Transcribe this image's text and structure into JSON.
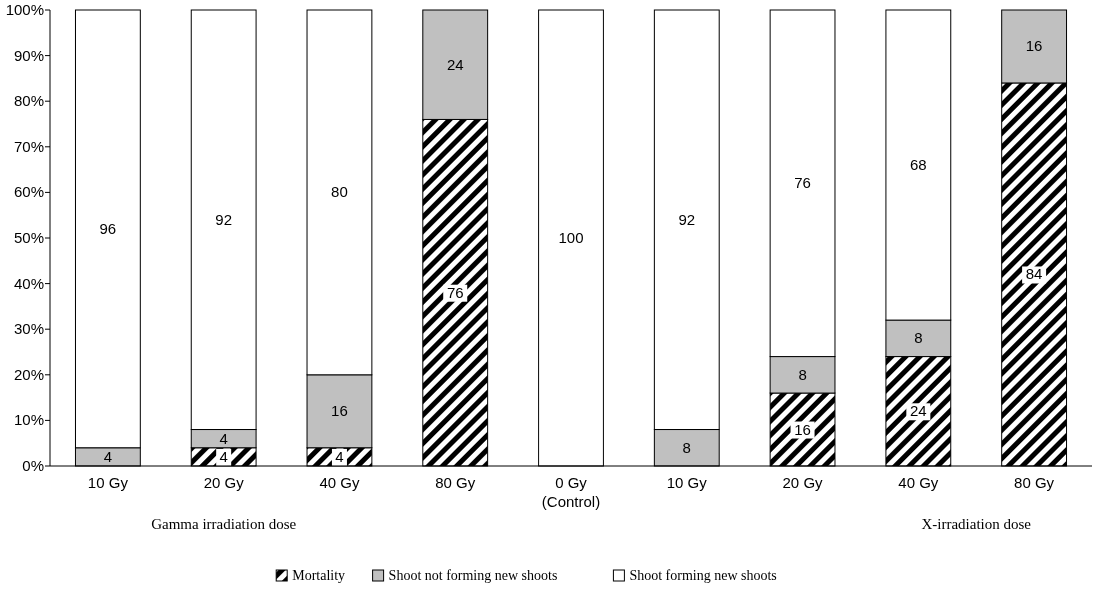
{
  "chart_data": {
    "type": "bar",
    "stacked": true,
    "categories": [
      "10 Gy",
      "20 Gy",
      "40 Gy",
      "80 Gy",
      "0 Gy\n(Control)",
      "10 Gy",
      "20 Gy",
      "40 Gy",
      "80 Gy"
    ],
    "series": [
      {
        "name": "Mortality",
        "color": "#000000",
        "values": [
          0,
          4,
          4,
          76,
          0,
          0,
          16,
          24,
          84
        ],
        "value_labels": [
          null,
          "4",
          "4",
          "76",
          null,
          null,
          "16",
          "24",
          "84"
        ]
      },
      {
        "name": "Shoot not forming new shoots",
        "color": "#c0c0c0",
        "values": [
          4,
          4,
          16,
          24,
          0,
          8,
          8,
          8,
          16
        ],
        "value_labels": [
          "4",
          "4",
          "16",
          "24",
          null,
          "8",
          "8",
          "8",
          "16"
        ]
      },
      {
        "name": "Shoot forming new shoots",
        "color": "#ffffff",
        "values": [
          96,
          92,
          80,
          0,
          100,
          92,
          76,
          68,
          0
        ],
        "value_labels": [
          "96",
          "92",
          "80",
          null,
          "100",
          "92",
          "76",
          "68",
          null
        ]
      }
    ],
    "ylim": [
      0,
      100
    ],
    "yticks": [
      {
        "value": 0,
        "label": "0%"
      },
      {
        "value": 10,
        "label": "10%"
      },
      {
        "value": 20,
        "label": "20%"
      },
      {
        "value": 30,
        "label": "30%"
      },
      {
        "value": 40,
        "label": "40%"
      },
      {
        "value": 50,
        "label": "50%"
      },
      {
        "value": 60,
        "label": "60%"
      },
      {
        "value": 70,
        "label": "70%"
      },
      {
        "value": 80,
        "label": "80%"
      },
      {
        "value": 90,
        "label": "90%"
      },
      {
        "value": 100,
        "label": "100%"
      }
    ],
    "annotations": [
      "Gamma irradiation dose",
      "X-irradiation dose"
    ],
    "legend": "bottom",
    "grid": false
  }
}
